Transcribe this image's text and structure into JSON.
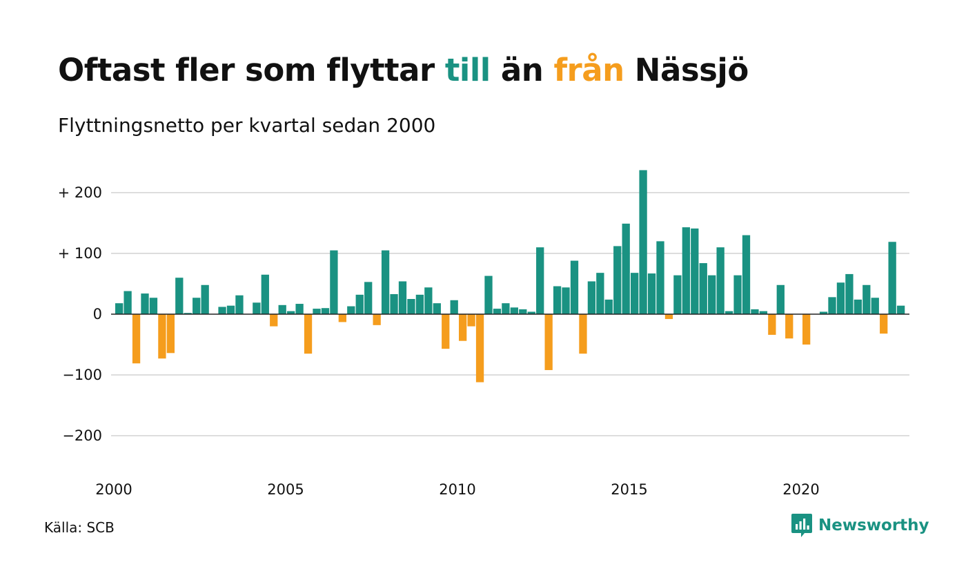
{
  "header": {
    "title_part1": "Oftast fler som flyttar ",
    "title_pos": "till",
    "title_part2": " än ",
    "title_neg": "från",
    "title_part3": " Nässjö",
    "subtitle": "Flyttningsnetto per kvartal sedan 2000"
  },
  "footer": {
    "source": "Källa: SCB",
    "brand": "Newsworthy"
  },
  "colors": {
    "positive": "#1a9282",
    "negative": "#f59d1d",
    "grid": "#dddddd",
    "zero_line": "#222222",
    "text": "#111111"
  },
  "chart_data": {
    "type": "bar",
    "title": "Oftast fler som flyttar till än från Nässjö",
    "subtitle": "Flyttningsnetto per kvartal sedan 2000",
    "x_start_year": 2000,
    "periods_per_year": 4,
    "xticks": [
      "2000",
      "2005",
      "2010",
      "2015",
      "2020"
    ],
    "yticks": [
      {
        "value": 200,
        "label": "+ 200"
      },
      {
        "value": 100,
        "label": "+ 100"
      },
      {
        "value": 0,
        "label": "0"
      },
      {
        "value": -100,
        "label": "−100"
      },
      {
        "value": -200,
        "label": "−200"
      }
    ],
    "ylim": [
      -260,
      260
    ],
    "grid": true,
    "values": [
      18,
      38,
      -81,
      34,
      27,
      -73,
      -64,
      60,
      2,
      27,
      48,
      0,
      12,
      14,
      31,
      0,
      19,
      65,
      -20,
      15,
      5,
      17,
      -65,
      9,
      10,
      105,
      -13,
      13,
      32,
      53,
      -18,
      105,
      33,
      54,
      25,
      32,
      44,
      18,
      -57,
      23,
      -44,
      -20,
      -112,
      63,
      9,
      18,
      11,
      8,
      4,
      110,
      -92,
      46,
      44,
      88,
      -65,
      54,
      68,
      24,
      112,
      149,
      68,
      237,
      67,
      120,
      -8,
      64,
      143,
      141,
      84,
      64,
      110,
      5,
      64,
      130,
      8,
      5,
      -34,
      48,
      -40,
      0,
      -50,
      0,
      4,
      28,
      52,
      66,
      24,
      48,
      27,
      -32,
      119,
      14
    ]
  }
}
